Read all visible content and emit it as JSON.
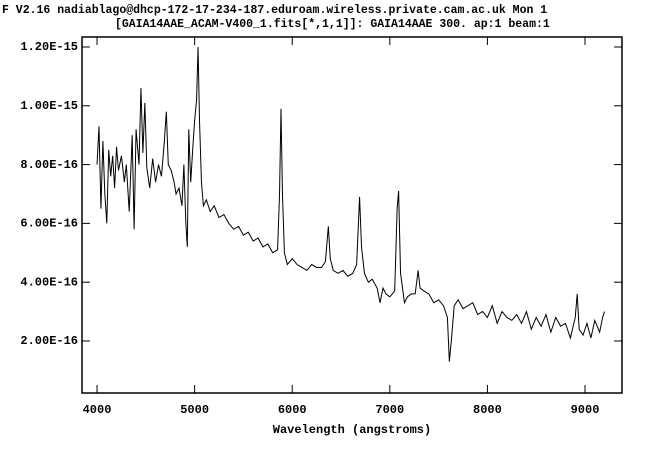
{
  "header": {
    "line1": "F V2.16 nadiablago@dhcp-172-17-234-187.eduroam.wireless.private.cam.ac.uk Mon 1",
    "line2": "[GAIA14AAE_ACAM-V400_1.fits[*,1,1]]: GAIA14AAE 300. ap:1 beam:1"
  },
  "chart_data": {
    "type": "line",
    "x_label": "Wavelength (angstroms)",
    "color": "#000000",
    "xlim": [
      3846,
      9379
    ],
    "ylim": [
      2.3e-17,
      1.234e-15
    ],
    "xticks": [
      4000,
      5000,
      6000,
      7000,
      8000,
      9000
    ],
    "yticks": [
      {
        "value": 2e-16,
        "label": "2.00E-16"
      },
      {
        "value": 4e-16,
        "label": "4.00E-16"
      },
      {
        "value": 6e-16,
        "label": "6.00E-16"
      },
      {
        "value": 8e-16,
        "label": "8.00E-16"
      },
      {
        "value": 1e-15,
        "label": "1.00E-15"
      },
      {
        "value": 1.2e-15,
        "label": "1.20E-15"
      }
    ],
    "x": [
      4000,
      4020,
      4040,
      4060,
      4080,
      4100,
      4120,
      4140,
      4160,
      4180,
      4200,
      4220,
      4250,
      4280,
      4300,
      4330,
      4360,
      4380,
      4400,
      4430,
      4450,
      4470,
      4490,
      4510,
      4540,
      4570,
      4600,
      4630,
      4660,
      4690,
      4710,
      4730,
      4760,
      4790,
      4810,
      4840,
      4870,
      4890,
      4910,
      4925,
      4940,
      4960,
      4980,
      5000,
      5020,
      5035,
      5050,
      5070,
      5090,
      5120,
      5160,
      5200,
      5250,
      5300,
      5350,
      5400,
      5450,
      5500,
      5550,
      5600,
      5650,
      5700,
      5750,
      5800,
      5850,
      5870,
      5885,
      5900,
      5920,
      5950,
      6000,
      6050,
      6100,
      6150,
      6200,
      6250,
      6300,
      6340,
      6370,
      6390,
      6420,
      6470,
      6520,
      6570,
      6620,
      6660,
      6690,
      6710,
      6740,
      6780,
      6820,
      6870,
      6900,
      6930,
      6960,
      7000,
      7050,
      7075,
      7090,
      7110,
      7150,
      7180,
      7220,
      7260,
      7290,
      7310,
      7350,
      7400,
      7450,
      7500,
      7550,
      7590,
      7610,
      7630,
      7660,
      7700,
      7750,
      7800,
      7850,
      7900,
      7950,
      8000,
      8050,
      8100,
      8150,
      8200,
      8250,
      8300,
      8350,
      8400,
      8450,
      8500,
      8550,
      8600,
      8650,
      8700,
      8750,
      8800,
      8850,
      8900,
      8920,
      8940,
      8980,
      9020,
      9060,
      9100,
      9150,
      9180,
      9200
    ],
    "values": [
      8e-16,
      9.3e-16,
      6.5e-16,
      8.8e-16,
      7e-16,
      6e-16,
      8.5e-16,
      7.6e-16,
      8.3e-16,
      7.2e-16,
      8.6e-16,
      7.8e-16,
      8.3e-16,
      7.4e-16,
      8e-16,
      6.4e-16,
      9e-16,
      5.8e-16,
      9.2e-16,
      8e-16,
      1.06e-15,
      8.4e-16,
      1.01e-15,
      7.9e-16,
      7.2e-16,
      8.2e-16,
      7.4e-16,
      8e-16,
      7.6e-16,
      8.8e-16,
      9.8e-16,
      8e-16,
      7.8e-16,
      7.4e-16,
      7e-16,
      7.2e-16,
      6.6e-16,
      8e-16,
      6e-16,
      5.2e-16,
      9.2e-16,
      7.4e-16,
      8.5e-16,
      9.5e-16,
      1.02e-15,
      1.2e-15,
      9.5e-16,
      7.4e-16,
      6.6e-16,
      6.8e-16,
      6.4e-16,
      6.6e-16,
      6.2e-16,
      6.3e-16,
      6e-16,
      5.8e-16,
      5.9e-16,
      5.6e-16,
      5.7e-16,
      5.4e-16,
      5.5e-16,
      5.2e-16,
      5.3e-16,
      5e-16,
      5.1e-16,
      7e-16,
      9.9e-16,
      7e-16,
      5e-16,
      4.6e-16,
      4.8e-16,
      4.6e-16,
      4.5e-16,
      4.4e-16,
      4.6e-16,
      4.5e-16,
      4.5e-16,
      4.7e-16,
      5.9e-16,
      4.8e-16,
      4.4e-16,
      4.3e-16,
      4.4e-16,
      4.2e-16,
      4.3e-16,
      4.6e-16,
      6.9e-16,
      5.2e-16,
      4.3e-16,
      4e-16,
      4.1e-16,
      3.8e-16,
      3.3e-16,
      3.8e-16,
      3.6e-16,
      3.5e-16,
      3.7e-16,
      6.5e-16,
      7.1e-16,
      4.3e-16,
      3.3e-16,
      3.5e-16,
      3.6e-16,
      3.6e-16,
      4.4e-16,
      3.8e-16,
      3.7e-16,
      3.6e-16,
      3.3e-16,
      3.4e-16,
      3.2e-16,
      2.8e-16,
      1.3e-16,
      2e-16,
      3.2e-16,
      3.4e-16,
      3.1e-16,
      3.2e-16,
      3.3e-16,
      2.9e-16,
      3e-16,
      2.8e-16,
      3.2e-16,
      2.6e-16,
      3e-16,
      2.8e-16,
      2.7e-16,
      2.9e-16,
      2.6e-16,
      3e-16,
      2.4e-16,
      2.8e-16,
      2.5e-16,
      2.9e-16,
      2.3e-16,
      2.8e-16,
      2.5e-16,
      2.6e-16,
      2.1e-16,
      2.8e-16,
      3.6e-16,
      2.4e-16,
      2.2e-16,
      2.6e-16,
      2.1e-16,
      2.7e-16,
      2.3e-16,
      2.8e-16,
      3e-16
    ]
  }
}
